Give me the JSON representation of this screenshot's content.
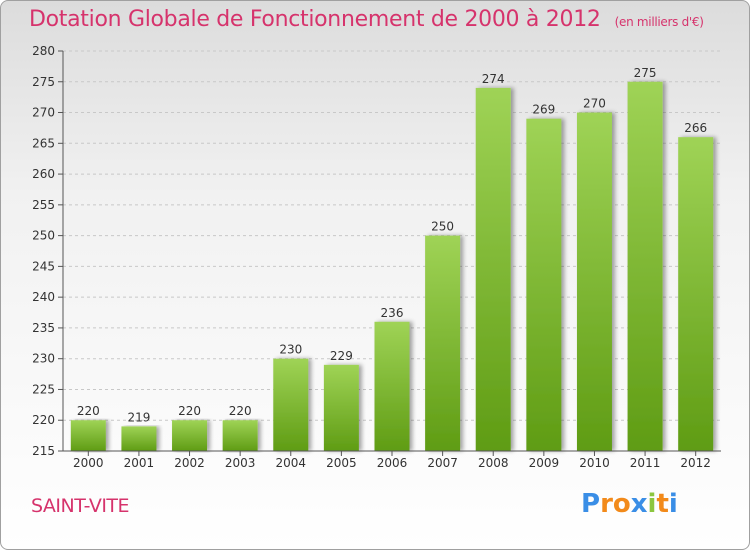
{
  "title": "Dotation Globale de Fonctionnement de 2000 à 2012",
  "unit": "(en milliers d'€)",
  "commune": "SAINT-VITE",
  "logo": "Proxiti",
  "colors": {
    "title": "#d6336c",
    "bar_top": "#9fd356",
    "bar_bottom": "#5f9c14",
    "logo_letters": [
      "#3a8ee6",
      "#f28a1a",
      "#f28a1a",
      "#3a8ee6",
      "#8cc63f",
      "#f28a1a",
      "#3a8ee6"
    ]
  },
  "chart_data": {
    "type": "bar",
    "title": "Dotation Globale de Fonctionnement de 2000 à 2012",
    "xlabel": "",
    "ylabel": "",
    "categories": [
      "2000",
      "2001",
      "2002",
      "2003",
      "2004",
      "2005",
      "2006",
      "2007",
      "2008",
      "2009",
      "2010",
      "2011",
      "2012"
    ],
    "values": [
      220,
      219,
      220,
      220,
      230,
      229,
      236,
      250,
      274,
      269,
      270,
      275,
      266
    ],
    "ylim": [
      215,
      280
    ],
    "yticks": [
      215,
      220,
      225,
      230,
      235,
      240,
      245,
      250,
      255,
      260,
      265,
      270,
      275,
      280
    ],
    "grid": true,
    "legend": "none"
  }
}
